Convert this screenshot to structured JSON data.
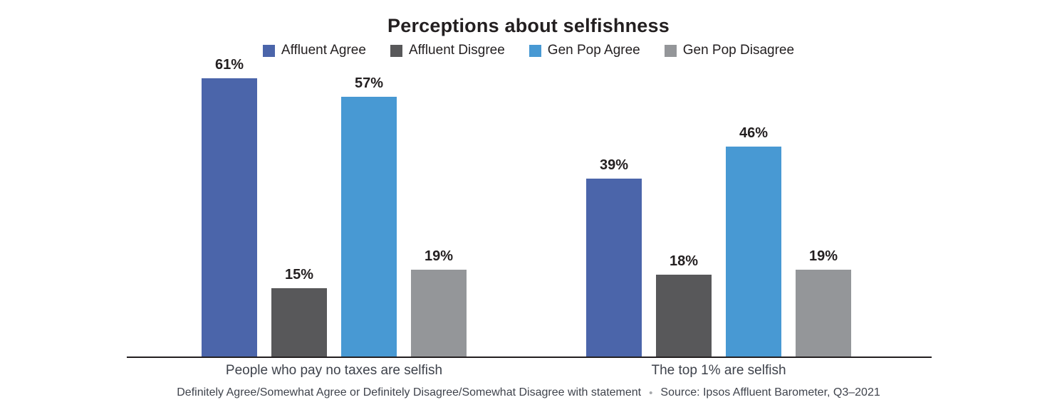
{
  "chart_data": {
    "type": "bar",
    "title": "Perceptions about selfishness",
    "categories": [
      "People who pay no taxes are selfish",
      "The top 1% are selfish"
    ],
    "series": [
      {
        "name": "Affluent Agree",
        "color": "#4b65aa",
        "values": [
          61,
          39
        ]
      },
      {
        "name": "Affluent Disgree",
        "color": "#58585a",
        "values": [
          15,
          18
        ]
      },
      {
        "name": "Gen Pop Agree",
        "color": "#4899d3",
        "values": [
          57,
          46
        ]
      },
      {
        "name": "Gen Pop Disagree",
        "color": "#949699",
        "values": [
          19,
          19
        ]
      }
    ],
    "value_suffix": "%",
    "ylim": [
      0,
      63
    ],
    "grid": false,
    "legend_position": "top",
    "axis_color": "#231f20"
  },
  "footer": {
    "note": "Definitely Agree/Somewhat Agree or Definitely Disagree/Somewhat Disagree with statement",
    "separator": "•",
    "source": "Source: Ipsos Affluent Barometer, Q3–2021"
  }
}
